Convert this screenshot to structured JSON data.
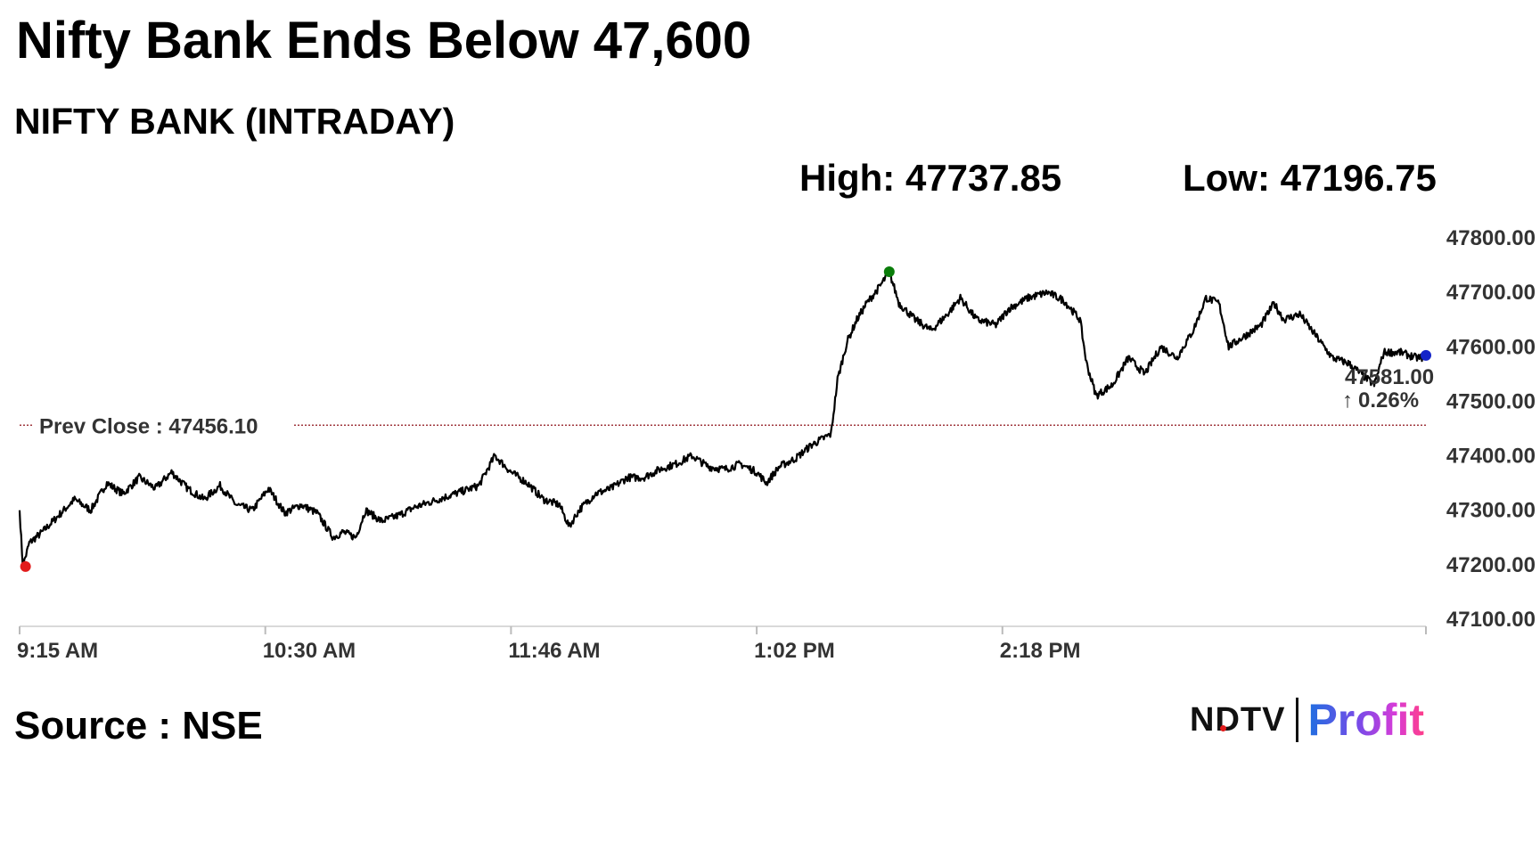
{
  "title": "Nifty Bank Ends Below 47,600",
  "subtitle": "NIFTY BANK (INTRADAY)",
  "stats": {
    "high": "High: 47737.85",
    "low": "Low: 47196.75"
  },
  "source": "Source : NSE",
  "logo": {
    "left": "NDTV",
    "right": "Profit"
  },
  "colors": {
    "line": "#000000",
    "prev_close": "#a0393f",
    "high_marker": "#0a7d0a",
    "low_marker": "#e21b1b",
    "last_marker": "#1424c8",
    "change": "#0a7d0a"
  },
  "chart_data": {
    "type": "line",
    "x_ticks": [
      "9:15 AM",
      "10:30 AM",
      "11:46 AM",
      "1:02 PM",
      "2:18 PM"
    ],
    "y_ticks": [
      "47800.00",
      "47700.00",
      "47600.00",
      "47500.00",
      "47400.00",
      "47300.00",
      "47200.00",
      "47100.00"
    ],
    "ylim": [
      47100,
      47800
    ],
    "prev_close": {
      "label": "Prev Close : 47456.10",
      "value": 47456.1
    },
    "last": {
      "value_label": "47581.00",
      "change_label": "0.26%",
      "value": 47581.0
    },
    "high_value": 47737.85,
    "low_value": 47196.75,
    "series": [
      {
        "points": [
          [
            "9:15",
            47300
          ],
          [
            "9:16",
            47196.75
          ],
          [
            "9:18",
            47240
          ],
          [
            "9:22",
            47260
          ],
          [
            "9:27",
            47290
          ],
          [
            "9:32",
            47320
          ],
          [
            "9:37",
            47300
          ],
          [
            "9:42",
            47350
          ],
          [
            "9:47",
            47330
          ],
          [
            "9:52",
            47360
          ],
          [
            "9:57",
            47340
          ],
          [
            "10:02",
            47370
          ],
          [
            "10:07",
            47340
          ],
          [
            "10:12",
            47320
          ],
          [
            "10:17",
            47345
          ],
          [
            "10:22",
            47310
          ],
          [
            "10:27",
            47300
          ],
          [
            "10:32",
            47340
          ],
          [
            "10:37",
            47295
          ],
          [
            "10:42",
            47310
          ],
          [
            "10:47",
            47295
          ],
          [
            "10:52",
            47250
          ],
          [
            "10:55",
            47260
          ],
          [
            "10:59",
            47250
          ],
          [
            "11:02",
            47300
          ],
          [
            "11:07",
            47280
          ],
          [
            "11:12",
            47290
          ],
          [
            "11:17",
            47305
          ],
          [
            "11:22",
            47315
          ],
          [
            "11:27",
            47325
          ],
          [
            "11:32",
            47335
          ],
          [
            "11:37",
            47345
          ],
          [
            "11:42",
            47400
          ],
          [
            "11:47",
            47370
          ],
          [
            "11:52",
            47350
          ],
          [
            "11:57",
            47320
          ],
          [
            "12:02",
            47310
          ],
          [
            "12:05",
            47270
          ],
          [
            "12:08",
            47300
          ],
          [
            "12:13",
            47330
          ],
          [
            "12:18",
            47340
          ],
          [
            "12:23",
            47360
          ],
          [
            "12:28",
            47360
          ],
          [
            "12:33",
            47375
          ],
          [
            "12:38",
            47385
          ],
          [
            "12:43",
            47400
          ],
          [
            "12:48",
            47380
          ],
          [
            "12:53",
            47375
          ],
          [
            "12:58",
            47385
          ],
          [
            "13:03",
            47370
          ],
          [
            "13:06",
            47350
          ],
          [
            "13:10",
            47380
          ],
          [
            "13:15",
            47395
          ],
          [
            "13:20",
            47420
          ],
          [
            "13:26",
            47440
          ],
          [
            "13:28",
            47540
          ],
          [
            "13:31",
            47610
          ],
          [
            "13:34",
            47650
          ],
          [
            "13:37",
            47680
          ],
          [
            "13:41",
            47710
          ],
          [
            "13:44",
            47737.85
          ],
          [
            "13:47",
            47680
          ],
          [
            "13:52",
            47650
          ],
          [
            "13:57",
            47630
          ],
          [
            "14:02",
            47660
          ],
          [
            "14:06",
            47690
          ],
          [
            "14:11",
            47650
          ],
          [
            "14:17",
            47640
          ],
          [
            "14:21",
            47670
          ],
          [
            "14:27",
            47690
          ],
          [
            "14:33",
            47700
          ],
          [
            "14:38",
            47685
          ],
          [
            "14:43",
            47650
          ],
          [
            "14:45",
            47570
          ],
          [
            "14:48",
            47510
          ],
          [
            "14:53",
            47530
          ],
          [
            "14:58",
            47580
          ],
          [
            "15:03",
            47550
          ],
          [
            "15:08",
            47600
          ],
          [
            "15:13",
            47580
          ],
          [
            "15:18",
            47630
          ],
          [
            "15:22",
            47690
          ],
          [
            "15:26",
            47680
          ],
          [
            "15:29",
            47600
          ],
          [
            "15:34",
            47620
          ],
          [
            "15:39",
            47640
          ],
          [
            "15:43",
            47680
          ],
          [
            "15:46",
            47650
          ],
          [
            "15:51",
            47660
          ],
          [
            "15:56",
            47620
          ],
          [
            "16:01",
            47580
          ],
          [
            "16:06",
            47570
          ],
          [
            "16:11",
            47545
          ],
          [
            "16:14",
            47530
          ],
          [
            "16:17",
            47590
          ],
          [
            "16:22",
            47590
          ],
          [
            "16:27",
            47580
          ],
          [
            "16:30",
            47581
          ]
        ]
      }
    ]
  }
}
